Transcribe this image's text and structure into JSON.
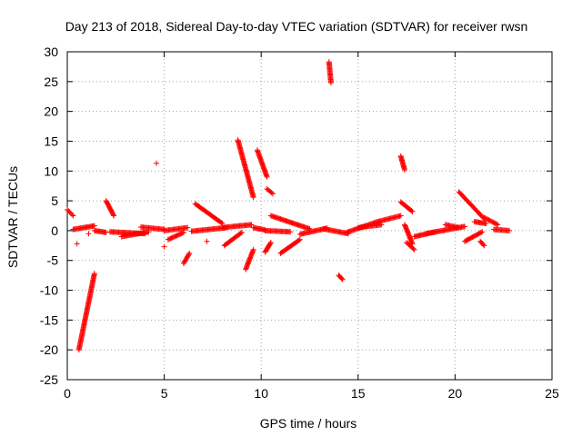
{
  "chart_data": {
    "type": "scatter",
    "title": "Day 213 of 2018, Sidereal Day-to-day VTEC variation (SDTVAR) for receiver rwsn",
    "xlabel": "GPS time / hours",
    "ylabel": "SDTVAR / TECUs",
    "xlim": [
      0,
      25
    ],
    "ylim": [
      -25,
      30
    ],
    "xticks": [
      0,
      5,
      10,
      15,
      20,
      25
    ],
    "yticks": [
      -25,
      -20,
      -15,
      -10,
      -5,
      0,
      5,
      10,
      15,
      20,
      25,
      30
    ],
    "grid": true,
    "marker": "+",
    "color": "#ff0000",
    "tracks": [
      {
        "x": [
          0.0,
          0.3
        ],
        "y": [
          3.5,
          2.5
        ]
      },
      {
        "x": [
          0.3,
          1.4
        ],
        "y": [
          0.2,
          0.8
        ]
      },
      {
        "x": [
          0.6,
          1.4
        ],
        "y": [
          -20,
          -7.2
        ]
      },
      {
        "x": [
          1.4,
          2.0
        ],
        "y": [
          0.0,
          -0.3
        ]
      },
      {
        "x": [
          2.0,
          2.4
        ],
        "y": [
          5.0,
          2.5
        ]
      },
      {
        "x": [
          2.2,
          4.0
        ],
        "y": [
          -0.2,
          -0.5
        ]
      },
      {
        "x": [
          2.8,
          4.2
        ],
        "y": [
          -1.0,
          -0.2
        ]
      },
      {
        "x": [
          3.8,
          5.0
        ],
        "y": [
          0.6,
          0.2
        ]
      },
      {
        "x": [
          5.0,
          6.2
        ],
        "y": [
          0.0,
          0.5
        ]
      },
      {
        "x": [
          5.2,
          6.0
        ],
        "y": [
          -1.5,
          -0.3
        ]
      },
      {
        "x": [
          6.0,
          6.3
        ],
        "y": [
          -5.5,
          -3.8
        ]
      },
      {
        "x": [
          6.4,
          8.2
        ],
        "y": [
          -0.1,
          0.5
        ]
      },
      {
        "x": [
          6.6,
          8.0
        ],
        "y": [
          4.5,
          1.2
        ]
      },
      {
        "x": [
          8.0,
          9.5
        ],
        "y": [
          0.5,
          1.0
        ]
      },
      {
        "x": [
          8.1,
          9.0
        ],
        "y": [
          -2.5,
          -0.3
        ]
      },
      {
        "x": [
          8.8,
          9.6
        ],
        "y": [
          15.2,
          5.6
        ]
      },
      {
        "x": [
          9.2,
          9.6
        ],
        "y": [
          -6.5,
          -3.2
        ]
      },
      {
        "x": [
          9.6,
          10.2
        ],
        "y": [
          0.5,
          0.1
        ]
      },
      {
        "x": [
          9.8,
          10.3
        ],
        "y": [
          13.5,
          9.0
        ]
      },
      {
        "x": [
          10.2,
          11.5
        ],
        "y": [
          0.0,
          -0.2
        ]
      },
      {
        "x": [
          10.2,
          10.5
        ],
        "y": [
          -3.6,
          -2.0
        ]
      },
      {
        "x": [
          10.3,
          10.6
        ],
        "y": [
          7.0,
          6.2
        ]
      },
      {
        "x": [
          10.5,
          12.5
        ],
        "y": [
          2.5,
          0.3
        ]
      },
      {
        "x": [
          11.0,
          12.0
        ],
        "y": [
          -3.8,
          -1.5
        ]
      },
      {
        "x": [
          12.0,
          13.4
        ],
        "y": [
          -0.6,
          0.4
        ]
      },
      {
        "x": [
          13.2,
          14.5
        ],
        "y": [
          0.3,
          -0.5
        ]
      },
      {
        "x": [
          13.5,
          13.6
        ],
        "y": [
          28.3,
          24.8
        ]
      },
      {
        "x": [
          14.0,
          14.2
        ],
        "y": [
          -7.5,
          -8.2
        ]
      },
      {
        "x": [
          14.4,
          16.0
        ],
        "y": [
          -0.3,
          1.5
        ]
      },
      {
        "x": [
          15.0,
          16.2
        ],
        "y": [
          0.5,
          1.0
        ]
      },
      {
        "x": [
          16.0,
          17.2
        ],
        "y": [
          1.5,
          2.5
        ]
      },
      {
        "x": [
          17.2,
          17.4
        ],
        "y": [
          12.5,
          10.2
        ]
      },
      {
        "x": [
          17.2,
          17.8
        ],
        "y": [
          4.8,
          3.2
        ]
      },
      {
        "x": [
          17.4,
          17.8
        ],
        "y": [
          1.0,
          -2.2
        ]
      },
      {
        "x": [
          17.5,
          17.9
        ],
        "y": [
          -2.0,
          -3.2
        ]
      },
      {
        "x": [
          17.9,
          19.0
        ],
        "y": [
          -1.0,
          -0.2
        ]
      },
      {
        "x": [
          18.5,
          20.5
        ],
        "y": [
          -0.5,
          0.7
        ]
      },
      {
        "x": [
          19.5,
          20.2
        ],
        "y": [
          1.0,
          0.5
        ]
      },
      {
        "x": [
          20.2,
          21.5
        ],
        "y": [
          6.5,
          2.0
        ]
      },
      {
        "x": [
          20.5,
          21.4
        ],
        "y": [
          -1.8,
          -0.2
        ]
      },
      {
        "x": [
          21.0,
          21.6
        ],
        "y": [
          1.5,
          1.2
        ]
      },
      {
        "x": [
          21.3,
          21.5
        ],
        "y": [
          -1.8,
          -2.5
        ]
      },
      {
        "x": [
          21.5,
          22.2
        ],
        "y": [
          2.2,
          1.0
        ]
      },
      {
        "x": [
          22.0,
          22.8
        ],
        "y": [
          0.2,
          0.0
        ]
      }
    ],
    "points": [
      {
        "x": 0.5,
        "y": -2.2
      },
      {
        "x": 4.6,
        "y": 11.3
      },
      {
        "x": 5.0,
        "y": -2.7
      },
      {
        "x": 7.2,
        "y": -1.8
      },
      {
        "x": 1.1,
        "y": -0.5
      }
    ]
  }
}
